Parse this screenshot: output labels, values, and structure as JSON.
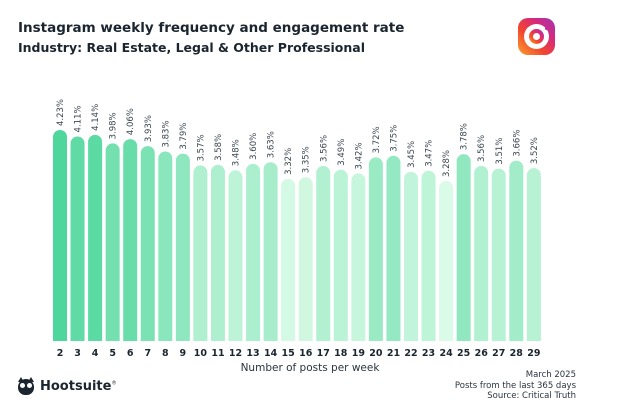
{
  "header": {
    "title": "Instagram weekly frequency and engagement rate",
    "subtitle": "Industry: Real Estate, Legal & Other Professional"
  },
  "icons": {
    "instagram": "instagram-logo-icon",
    "brand": "hootsuite-owl-icon"
  },
  "footer": {
    "date": "March 2025",
    "period": "Posts from the last 365 days",
    "source": "Source: Critical Truth",
    "brand": "Hootsuite",
    "brand_mark": "®"
  },
  "chart_data": {
    "type": "bar",
    "title": "Instagram weekly frequency and engagement rate",
    "subtitle": "Industry: Real Estate, Legal & Other Professional",
    "xlabel": "Number of posts per week",
    "ylabel": "",
    "grid": false,
    "categories": [
      "2",
      "3",
      "4",
      "5",
      "6",
      "7",
      "8",
      "9",
      "10",
      "11",
      "12",
      "13",
      "14",
      "15",
      "16",
      "17",
      "18",
      "19",
      "20",
      "21",
      "22",
      "23",
      "24",
      "25",
      "26",
      "27",
      "28",
      "29"
    ],
    "values": [
      4.23,
      4.11,
      4.14,
      3.98,
      4.06,
      3.93,
      3.83,
      3.79,
      3.57,
      3.58,
      3.48,
      3.6,
      3.63,
      3.32,
      3.35,
      3.56,
      3.49,
      3.42,
      3.72,
      3.75,
      3.45,
      3.47,
      3.28,
      3.78,
      3.56,
      3.51,
      3.66,
      3.52
    ],
    "labels": [
      "4.23%",
      "4.11%",
      "4.14%",
      "3.98%",
      "4.06%",
      "3.93%",
      "3.83%",
      "3.79%",
      "3.57%",
      "3.58%",
      "3.48%",
      "3.60%",
      "3.63%",
      "3.32%",
      "3.35%",
      "3.56%",
      "3.49%",
      "3.42%",
      "3.72%",
      "3.75%",
      "3.45%",
      "3.47%",
      "3.28%",
      "3.78%",
      "3.56%",
      "3.51%",
      "3.66%",
      "3.52%"
    ],
    "ylim": [
      0,
      4.23
    ],
    "colors": {
      "high": "#4fd69c",
      "low": "#dafbe7"
    }
  }
}
